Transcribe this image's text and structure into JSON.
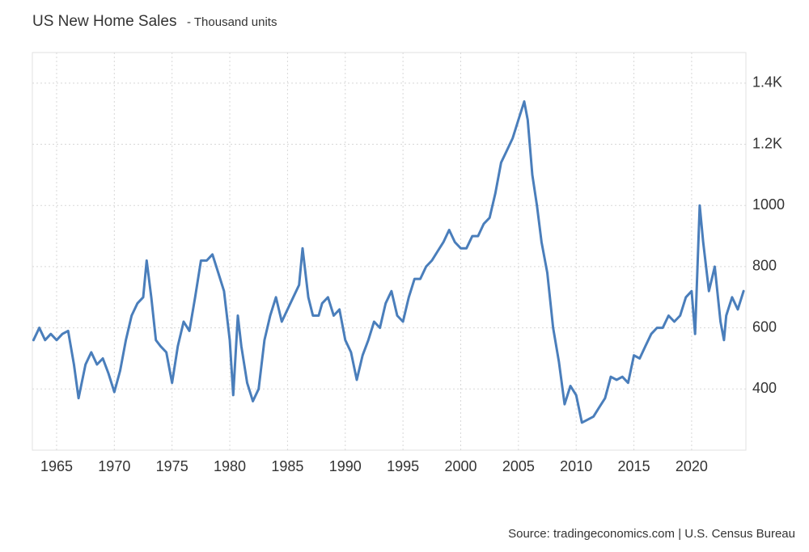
{
  "chart_data": {
    "type": "line",
    "title": "US New Home Sales",
    "subtitle": "- Thousand units",
    "source": "Source: tradingeconomics.com | U.S. Census Bureau",
    "color": "#4a7ebb",
    "grid": true,
    "xlim": [
      1962.9,
      2024.7
    ],
    "ylim": [
      200,
      1500
    ],
    "xticks": [
      1965,
      1970,
      1975,
      1980,
      1985,
      1990,
      1995,
      2000,
      2005,
      2010,
      2015,
      2020
    ],
    "yticks": [
      400,
      600,
      800,
      1000,
      {
        "value": 1200,
        "label": "1.2K"
      },
      {
        "value": 1400,
        "label": "1.4K"
      }
    ],
    "x": [
      1963.0,
      1963.5,
      1964.0,
      1964.5,
      1965.0,
      1965.5,
      1966.0,
      1966.5,
      1966.9,
      1967.5,
      1968.0,
      1968.5,
      1969.0,
      1969.5,
      1970.0,
      1970.5,
      1971.0,
      1971.5,
      1972.0,
      1972.5,
      1972.8,
      1973.2,
      1973.6,
      1974.0,
      1974.5,
      1975.0,
      1975.5,
      1976.0,
      1976.5,
      1977.0,
      1977.5,
      1978.0,
      1978.5,
      1979.0,
      1979.5,
      1980.0,
      1980.3,
      1980.7,
      1981.0,
      1981.5,
      1982.0,
      1982.5,
      1983.0,
      1983.5,
      1984.0,
      1984.5,
      1985.0,
      1985.5,
      1986.0,
      1986.3,
      1986.8,
      1987.2,
      1987.7,
      1988.0,
      1988.5,
      1989.0,
      1989.5,
      1990.0,
      1990.5,
      1991.0,
      1991.5,
      1992.0,
      1992.5,
      1993.0,
      1993.5,
      1994.0,
      1994.5,
      1995.0,
      1995.5,
      1996.0,
      1996.5,
      1997.0,
      1997.5,
      1998.0,
      1998.5,
      1999.0,
      1999.5,
      2000.0,
      2000.5,
      2001.0,
      2001.5,
      2002.0,
      2002.5,
      2003.0,
      2003.5,
      2004.0,
      2004.5,
      2005.0,
      2005.5,
      2005.8,
      2006.2,
      2006.6,
      2007.0,
      2007.5,
      2008.0,
      2008.5,
      2009.0,
      2009.5,
      2010.0,
      2010.5,
      2011.0,
      2011.5,
      2012.0,
      2012.5,
      2013.0,
      2013.5,
      2014.0,
      2014.5,
      2015.0,
      2015.5,
      2016.0,
      2016.5,
      2017.0,
      2017.5,
      2018.0,
      2018.5,
      2019.0,
      2019.5,
      2020.0,
      2020.3,
      2020.7,
      2021.0,
      2021.5,
      2022.0,
      2022.5,
      2022.8,
      2023.0,
      2023.5,
      2024.0,
      2024.5
    ],
    "values": [
      560,
      600,
      560,
      580,
      560,
      580,
      590,
      480,
      370,
      480,
      520,
      480,
      500,
      450,
      390,
      460,
      560,
      640,
      680,
      700,
      820,
      700,
      560,
      540,
      520,
      420,
      540,
      620,
      590,
      700,
      820,
      820,
      840,
      780,
      720,
      560,
      380,
      640,
      540,
      420,
      360,
      400,
      560,
      640,
      700,
      620,
      660,
      700,
      740,
      860,
      700,
      640,
      640,
      680,
      700,
      640,
      660,
      560,
      520,
      430,
      510,
      560,
      620,
      600,
      680,
      720,
      640,
      620,
      700,
      760,
      760,
      800,
      820,
      850,
      880,
      920,
      880,
      860,
      860,
      900,
      900,
      940,
      960,
      1040,
      1140,
      1180,
      1220,
      1280,
      1340,
      1280,
      1100,
      1000,
      880,
      780,
      600,
      490,
      350,
      410,
      380,
      290,
      300,
      310,
      340,
      370,
      440,
      430,
      440,
      420,
      510,
      500,
      540,
      580,
      600,
      600,
      640,
      620,
      640,
      700,
      720,
      580,
      1000,
      880,
      720,
      800,
      620,
      560,
      640,
      700,
      660,
      720
    ]
  }
}
